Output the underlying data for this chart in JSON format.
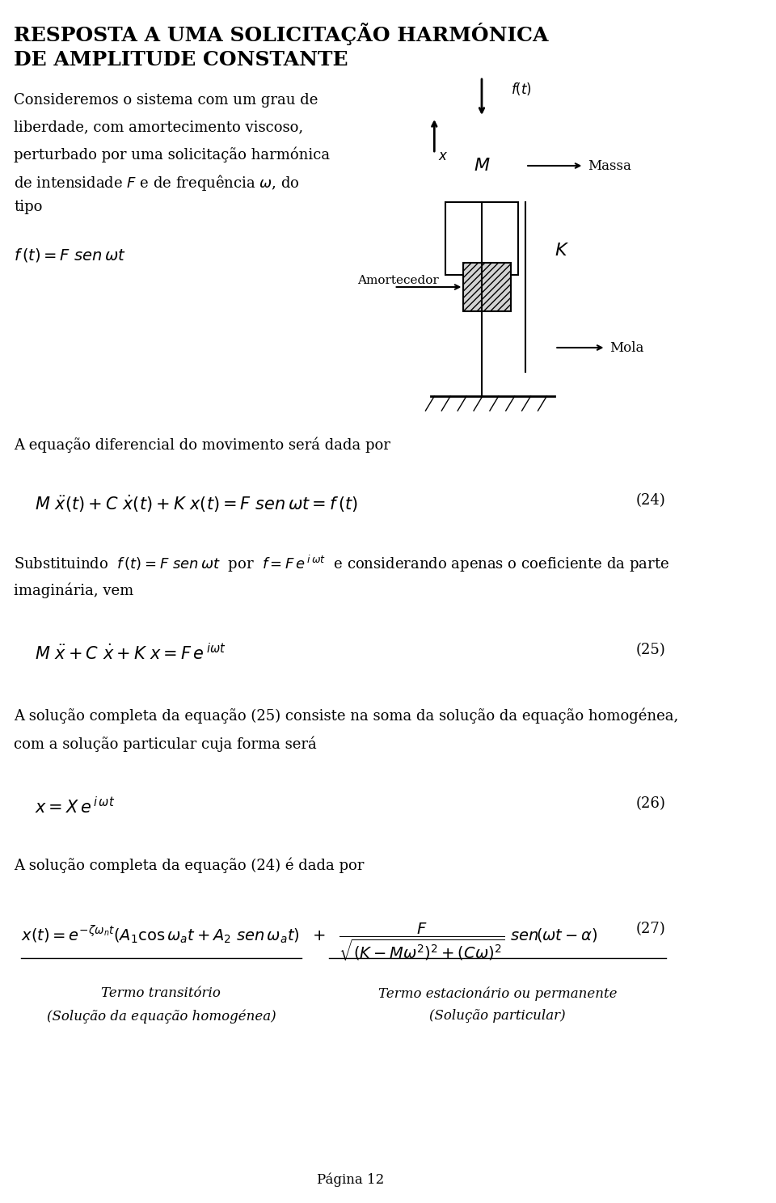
{
  "title_line1": "RESPOSTA A UMA SOLICITAÇÃO HARMÓNICA",
  "title_line2": "DE AMPLITUDE CONSTANTE",
  "bg_color": "#ffffff",
  "text_color": "#000000",
  "page_number": "Página 12"
}
